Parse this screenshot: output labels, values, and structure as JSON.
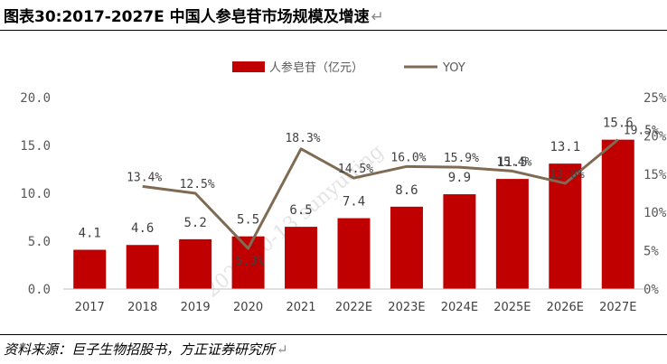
{
  "title": "图表30:2017-2027E 中国人参皂苷市场规模及增速",
  "return_mark": "↵",
  "source": "资料来源：巨子生物招股书，方正证券研究所",
  "watermark": "2023-10-13 sunyuqing",
  "chart_data": {
    "type": "bar",
    "categories": [
      "2017",
      "2018",
      "2019",
      "2020",
      "2021",
      "2022E",
      "2023E",
      "2024E",
      "2025E",
      "2026E",
      "2027E"
    ],
    "series": [
      {
        "name": "人参皂苷（亿元）",
        "type": "bar",
        "axis": "left",
        "values": [
          4.1,
          4.6,
          5.2,
          5.5,
          6.5,
          7.4,
          8.6,
          9.9,
          11.5,
          13.1,
          15.6
        ],
        "labels": [
          "4.1",
          "4.6",
          "5.2",
          "5.5",
          "6.5",
          "7.4",
          "8.6",
          "9.9",
          "11.5",
          "13.1",
          "15.6"
        ]
      },
      {
        "name": "YOY",
        "type": "line",
        "axis": "right",
        "values": [
          null,
          13.4,
          12.5,
          5.3,
          18.3,
          14.5,
          16.0,
          15.9,
          15.4,
          13.8,
          19.5
        ],
        "labels": [
          "",
          "13.4%",
          "12.5%",
          "5.3%",
          "18.3%",
          "14.5%",
          "16.0%",
          "15.9%",
          "15.4%",
          "13.8%",
          "19.5%"
        ]
      }
    ],
    "y_left": {
      "min": 0,
      "max": 20,
      "ticks": [
        "0.0",
        "5.0",
        "10.0",
        "15.0",
        "20.0"
      ]
    },
    "y_right": {
      "min": 0,
      "max": 25,
      "ticks": [
        "0%",
        "5%",
        "10%",
        "15%",
        "20%",
        "25%"
      ]
    },
    "legend_position": "top-center",
    "grid": false,
    "colors": {
      "bar": "#C00000",
      "line": "#7F6A53",
      "axis_text": "#595959"
    }
  }
}
